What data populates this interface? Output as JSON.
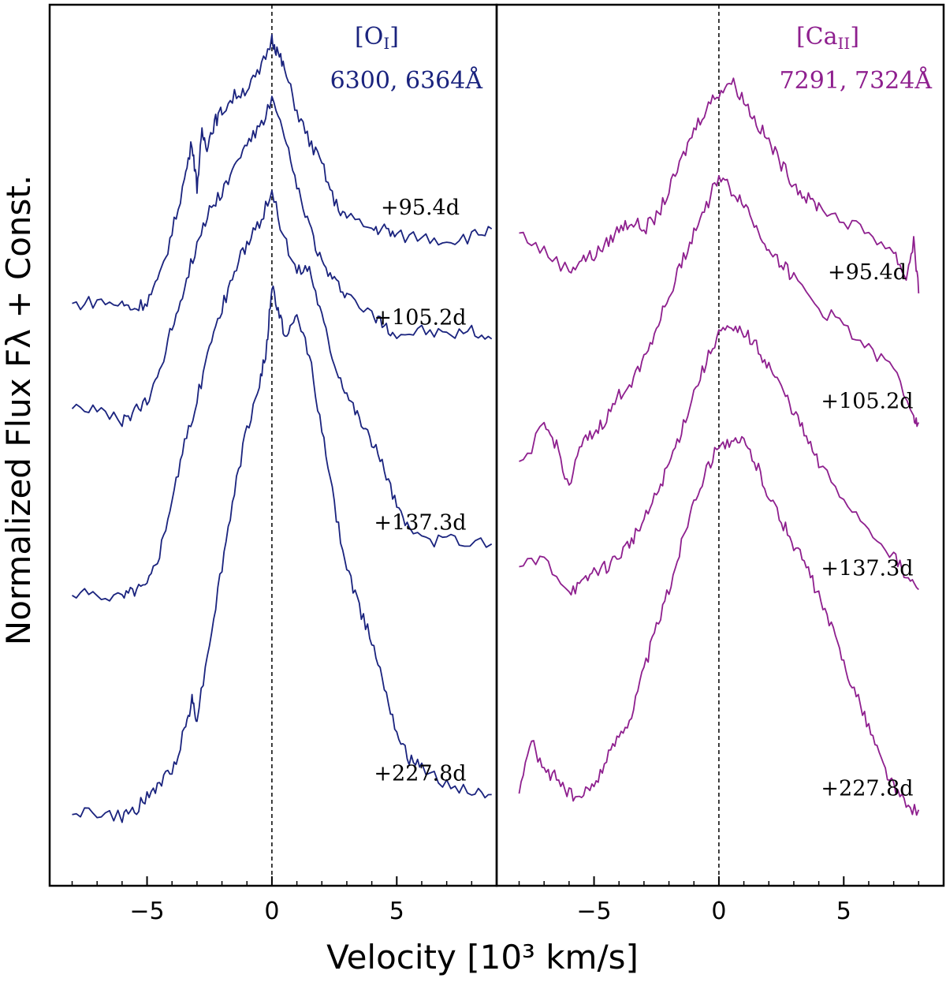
{
  "chart_data": [
    {
      "type": "line",
      "title_species": "[O",
      "title_ion": "I",
      "title_wavelengths": "6300, 6364Å",
      "color": "#1a237e",
      "xlabel": "Velocity [10³ km/s]",
      "ylabel": "Normalized Flux Fλ + Const.",
      "xlim": [
        -8.9,
        9.0
      ],
      "xticks": [
        "−5",
        "0",
        "5"
      ],
      "xtick_values": [
        -5,
        0,
        5
      ],
      "reference_line_x": 0,
      "series": [
        {
          "epoch": "+95.4d",
          "x": [
            -8.0,
            -7.0,
            -6.0,
            -5.5,
            -5.0,
            -4.5,
            -4.0,
            -3.5,
            -3.2,
            -3.0,
            -2.8,
            -2.6,
            -2.3,
            -2.0,
            -1.5,
            -1.0,
            -0.5,
            0.0,
            0.2,
            0.5,
            1.0,
            1.5,
            2.0,
            2.5,
            3.0,
            4.0,
            4.5,
            5.0,
            6.0,
            7.0,
            8.0,
            8.8
          ],
          "y": [
            7.05,
            7.1,
            7.05,
            7.0,
            7.1,
            7.4,
            8.0,
            8.7,
            9.2,
            8.6,
            9.3,
            9.15,
            9.45,
            9.6,
            9.8,
            9.9,
            10.1,
            10.55,
            10.4,
            10.15,
            9.6,
            9.2,
            8.9,
            8.4,
            8.2,
            8.05,
            8.05,
            7.95,
            7.95,
            7.9,
            7.95,
            8.05
          ]
        },
        {
          "epoch": "+105.2d",
          "x": [
            -8.0,
            -7.0,
            -6.0,
            -5.5,
            -5.0,
            -4.5,
            -4.0,
            -3.5,
            -3.0,
            -2.5,
            -2.0,
            -1.5,
            -1.0,
            -0.5,
            0.0,
            0.5,
            1.0,
            1.5,
            2.0,
            2.5,
            3.0,
            4.0,
            4.5,
            5.0,
            6.0,
            7.0,
            8.0,
            8.8
          ],
          "y": [
            5.75,
            5.65,
            5.5,
            5.65,
            5.75,
            6.2,
            6.75,
            7.3,
            7.85,
            8.3,
            8.55,
            8.85,
            9.2,
            9.35,
            9.75,
            9.25,
            8.6,
            8.1,
            7.6,
            7.35,
            7.2,
            6.9,
            6.8,
            6.65,
            6.7,
            6.65,
            6.7,
            6.6
          ]
        },
        {
          "epoch": "+137.3d",
          "x": [
            -8.0,
            -7.0,
            -6.0,
            -5.5,
            -5.0,
            -4.5,
            -4.0,
            -3.5,
            -3.0,
            -2.5,
            -2.0,
            -1.5,
            -1.0,
            -0.5,
            0.0,
            0.5,
            1.0,
            1.5,
            2.0,
            2.5,
            3.0,
            3.5,
            4.0,
            4.5,
            5.0,
            5.5,
            6.5,
            7.5,
            8.8
          ],
          "y": [
            3.2,
            3.25,
            3.2,
            3.3,
            3.35,
            3.8,
            4.5,
            5.2,
            5.8,
            6.5,
            7.0,
            7.5,
            7.85,
            8.1,
            8.55,
            7.9,
            7.5,
            7.55,
            6.9,
            6.3,
            5.9,
            5.55,
            5.25,
            4.9,
            4.4,
            4.05,
            3.95,
            3.95,
            3.9
          ]
        },
        {
          "epoch": "+227.8d",
          "x": [
            -8.0,
            -7.0,
            -6.0,
            -5.5,
            -5.0,
            -4.5,
            -4.0,
            -3.5,
            -3.2,
            -3.0,
            -2.5,
            -2.0,
            -1.5,
            -1.0,
            -0.5,
            -0.2,
            0.0,
            0.3,
            0.6,
            1.0,
            1.5,
            2.0,
            2.5,
            3.0,
            3.5,
            4.0,
            4.5,
            5.0,
            5.5,
            6.0,
            7.0,
            8.0,
            8.8
          ],
          "y": [
            0.4,
            0.35,
            0.3,
            0.4,
            0.55,
            0.75,
            0.9,
            1.45,
            1.85,
            1.6,
            2.6,
            3.6,
            4.6,
            5.4,
            6.0,
            6.5,
            7.3,
            6.9,
            6.6,
            6.9,
            6.4,
            5.4,
            4.4,
            3.6,
            3.05,
            2.65,
            2.05,
            1.45,
            1.05,
            0.95,
            0.75,
            0.65,
            0.6
          ]
        }
      ]
    },
    {
      "type": "line",
      "title_species": "[Ca",
      "title_ion": "II",
      "title_wavelengths": "7291, 7324Å",
      "color": "#8e1f8e",
      "xlim": [
        -8.9,
        9.0
      ],
      "xticks": [
        "−5",
        "0",
        "5"
      ],
      "xtick_values": [
        -5,
        0,
        5
      ],
      "reference_line_x": 0,
      "series": [
        {
          "epoch": "+95.4d",
          "x": [
            -8.0,
            -7.0,
            -6.0,
            -5.5,
            -5.0,
            -4.5,
            -4.0,
            -3.5,
            -3.0,
            -2.5,
            -2.0,
            -1.5,
            -1.0,
            -0.5,
            0.0,
            0.5,
            1.0,
            1.5,
            2.0,
            2.5,
            3.0,
            3.5,
            4.0,
            5.0,
            6.0,
            7.0,
            7.5,
            7.8,
            8.0
          ],
          "y": [
            8.0,
            7.75,
            7.5,
            7.65,
            7.7,
            7.85,
            8.05,
            8.15,
            8.05,
            8.2,
            8.55,
            8.95,
            9.35,
            9.65,
            9.85,
            10.0,
            9.75,
            9.45,
            9.2,
            8.9,
            8.65,
            8.45,
            8.35,
            8.15,
            8.0,
            7.75,
            7.4,
            7.9,
            7.2
          ]
        },
        {
          "epoch": "+105.2d",
          "x": [
            -8.0,
            -7.0,
            -6.5,
            -6.0,
            -5.5,
            -5.0,
            -4.5,
            -4.0,
            -3.5,
            -3.0,
            -2.5,
            -2.0,
            -1.5,
            -1.0,
            -0.5,
            0.0,
            0.5,
            1.0,
            1.5,
            2.0,
            2.5,
            3.0,
            4.0,
            5.0,
            6.0,
            7.0,
            7.8,
            8.0
          ],
          "y": [
            4.9,
            5.45,
            5.2,
            4.65,
            5.2,
            5.35,
            5.55,
            5.85,
            6.05,
            6.35,
            6.75,
            7.15,
            7.6,
            8.0,
            8.35,
            8.75,
            8.55,
            8.4,
            8.05,
            7.8,
            7.6,
            7.4,
            7.0,
            6.8,
            6.45,
            6.2,
            5.6,
            5.5
          ]
        },
        {
          "epoch": "+137.3d",
          "x": [
            -8.0,
            -7.0,
            -6.0,
            -5.5,
            -5.0,
            -4.5,
            -4.0,
            -3.5,
            -3.0,
            -2.5,
            -2.0,
            -1.5,
            -1.0,
            -0.5,
            0.0,
            0.5,
            1.0,
            1.5,
            2.0,
            2.5,
            3.0,
            3.5,
            4.0,
            5.0,
            6.0,
            7.0,
            7.5,
            8.0
          ],
          "y": [
            3.6,
            3.7,
            3.3,
            3.35,
            3.55,
            3.6,
            3.75,
            3.95,
            4.2,
            4.55,
            4.95,
            5.4,
            5.9,
            6.3,
            6.7,
            6.7,
            6.7,
            6.5,
            6.25,
            5.95,
            5.65,
            5.3,
            4.95,
            4.5,
            4.1,
            3.75,
            3.45,
            3.3
          ]
        },
        {
          "epoch": "+227.8d",
          "x": [
            -8.0,
            -7.5,
            -7.0,
            -6.5,
            -6.0,
            -5.5,
            -5.0,
            -4.5,
            -4.0,
            -3.5,
            -3.0,
            -2.5,
            -2.0,
            -1.5,
            -1.0,
            -0.5,
            0.0,
            0.5,
            1.0,
            1.5,
            2.0,
            2.5,
            3.0,
            3.5,
            4.0,
            4.5,
            5.0,
            5.5,
            6.0,
            6.5,
            7.0,
            7.5,
            8.0
          ],
          "y": [
            0.7,
            1.3,
            0.9,
            0.85,
            0.6,
            0.55,
            0.75,
            1.05,
            1.4,
            1.65,
            2.25,
            2.8,
            3.3,
            3.9,
            4.5,
            4.85,
            5.25,
            5.2,
            5.25,
            4.95,
            4.55,
            4.2,
            3.9,
            3.6,
            3.2,
            2.8,
            2.35,
            1.9,
            1.5,
            1.05,
            0.7,
            0.45,
            0.4
          ]
        }
      ]
    }
  ]
}
